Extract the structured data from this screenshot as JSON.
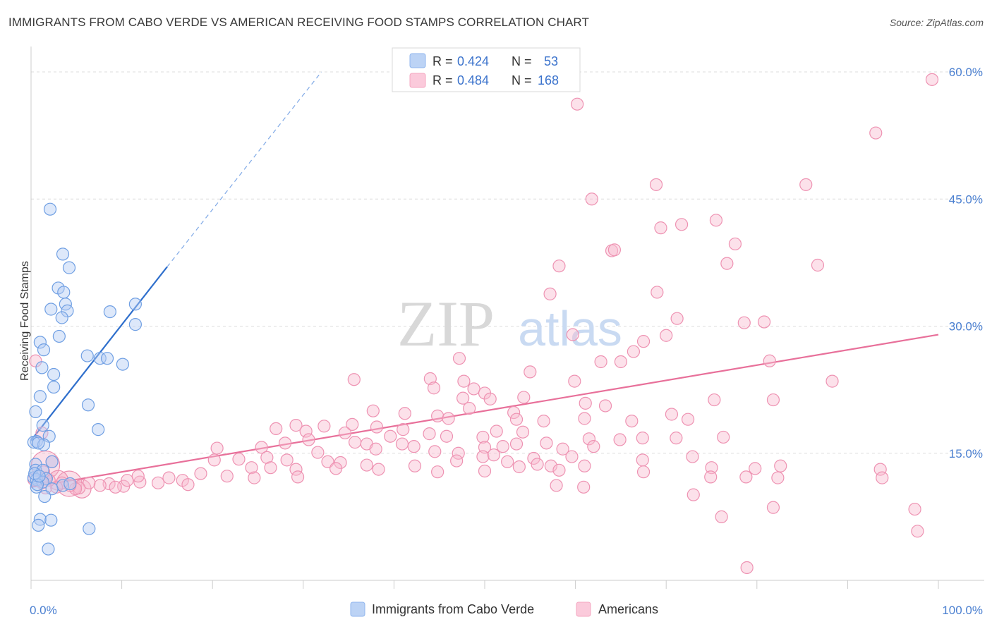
{
  "title": "IMMIGRANTS FROM CABO VERDE VS AMERICAN RECEIVING FOOD STAMPS CORRELATION CHART",
  "source": "Source: ZipAtlas.com",
  "watermark": {
    "zip": "ZIP",
    "atlas": "atlas"
  },
  "colors": {
    "blue": "#8fb6ee",
    "blue_line": "#2f6fcc",
    "pink": "#f4a7c0",
    "pink_line": "#e8709a",
    "axis_text": "#4a7fd0"
  },
  "stats": [
    {
      "r_label": "R =",
      "r": "0.424",
      "n_label": "N =",
      "n": "53"
    },
    {
      "r_label": "R =",
      "r": "0.484",
      "n_label": "N =",
      "n": "168"
    }
  ],
  "chart_data": {
    "type": "scatter",
    "ylabel": "Receiving Food Stamps",
    "xlim": [
      0,
      100
    ],
    "ylim": [
      0,
      62
    ],
    "x_ticks": [
      "0.0%",
      "100.0%"
    ],
    "y_ticks": [
      {
        "value": 15,
        "label": "15.0%"
      },
      {
        "value": 30,
        "label": "30.0%"
      },
      {
        "value": 45,
        "label": "45.0%"
      },
      {
        "value": 60,
        "label": "60.0%"
      }
    ],
    "grid": true,
    "legend": "bottom",
    "series": [
      {
        "name": "Immigrants from Cabo Verde",
        "color": "#8fb6ee",
        "trend": {
          "x0": 0,
          "y0": 16.5,
          "x1": 15,
          "y1": 37,
          "dash_to_x": 32,
          "dash_to_y": 60
        },
        "points": [
          [
            2.1,
            43.8
          ],
          [
            3.5,
            38.5
          ],
          [
            4.2,
            36.9
          ],
          [
            3.0,
            34.5
          ],
          [
            3.6,
            34.0
          ],
          [
            3.8,
            32.6
          ],
          [
            2.2,
            32.0
          ],
          [
            4.0,
            31.8
          ],
          [
            3.4,
            31.0
          ],
          [
            8.7,
            31.7
          ],
          [
            11.5,
            32.6
          ],
          [
            11.5,
            30.2
          ],
          [
            3.1,
            28.8
          ],
          [
            1.0,
            28.1
          ],
          [
            1.4,
            27.2
          ],
          [
            6.2,
            26.5
          ],
          [
            7.6,
            26.2
          ],
          [
            8.4,
            26.2
          ],
          [
            10.1,
            25.5
          ],
          [
            1.2,
            25.1
          ],
          [
            2.5,
            24.3
          ],
          [
            2.5,
            22.8
          ],
          [
            1.0,
            21.7
          ],
          [
            0.5,
            19.9
          ],
          [
            6.3,
            20.7
          ],
          [
            1.3,
            18.3
          ],
          [
            7.4,
            17.8
          ],
          [
            2.0,
            17.0
          ],
          [
            0.6,
            16.4
          ],
          [
            0.3,
            16.3
          ],
          [
            1.4,
            16.0
          ],
          [
            0.8,
            16.2
          ],
          [
            0.5,
            13.7
          ],
          [
            0.5,
            13.0
          ],
          [
            1.3,
            13.0
          ],
          [
            2.3,
            14.0
          ],
          [
            0.3,
            12.1
          ],
          [
            1.7,
            12.0
          ],
          [
            0.6,
            11.9
          ],
          [
            1.3,
            11.6
          ],
          [
            3.5,
            11.2
          ],
          [
            4.3,
            11.4
          ],
          [
            0.6,
            11.0
          ],
          [
            0.7,
            11.3
          ],
          [
            2.3,
            10.8
          ],
          [
            1.5,
            9.9
          ],
          [
            1.0,
            7.2
          ],
          [
            2.2,
            7.1
          ],
          [
            0.8,
            6.5
          ],
          [
            6.4,
            6.1
          ],
          [
            1.9,
            3.7
          ],
          [
            0.4,
            12.6
          ],
          [
            0.9,
            12.3
          ]
        ]
      },
      {
        "name": "Americans",
        "color": "#f4a7c0",
        "trend": {
          "x0": 0,
          "y0": 11.0,
          "x1": 100,
          "y1": 29.0
        },
        "points": [
          [
            99.3,
            59.1
          ],
          [
            60.2,
            56.2
          ],
          [
            93.1,
            52.8
          ],
          [
            68.9,
            46.7
          ],
          [
            85.4,
            46.7
          ],
          [
            61.8,
            45.0
          ],
          [
            75.5,
            42.5
          ],
          [
            71.7,
            42.0
          ],
          [
            69.4,
            41.6
          ],
          [
            77.6,
            39.7
          ],
          [
            64.0,
            38.9
          ],
          [
            64.3,
            39.0
          ],
          [
            58.2,
            37.1
          ],
          [
            76.7,
            37.4
          ],
          [
            86.7,
            37.2
          ],
          [
            57.2,
            33.8
          ],
          [
            69.0,
            34.0
          ],
          [
            71.2,
            30.9
          ],
          [
            78.6,
            30.4
          ],
          [
            80.8,
            30.5
          ],
          [
            59.7,
            29.0
          ],
          [
            70.0,
            28.9
          ],
          [
            67.5,
            28.2
          ],
          [
            66.4,
            27.0
          ],
          [
            62.8,
            25.8
          ],
          [
            81.4,
            25.9
          ],
          [
            65.0,
            25.8
          ],
          [
            47.2,
            26.2
          ],
          [
            55.0,
            24.6
          ],
          [
            35.6,
            23.7
          ],
          [
            44.0,
            23.8
          ],
          [
            47.7,
            23.5
          ],
          [
            44.4,
            22.7
          ],
          [
            48.8,
            22.6
          ],
          [
            50.0,
            22.1
          ],
          [
            59.9,
            23.5
          ],
          [
            88.3,
            23.5
          ],
          [
            50.6,
            21.4
          ],
          [
            54.3,
            21.6
          ],
          [
            47.6,
            21.5
          ],
          [
            75.3,
            21.3
          ],
          [
            81.8,
            21.3
          ],
          [
            61.1,
            20.9
          ],
          [
            63.3,
            20.6
          ],
          [
            48.3,
            20.3
          ],
          [
            37.7,
            20.0
          ],
          [
            53.2,
            19.8
          ],
          [
            41.2,
            19.7
          ],
          [
            61.0,
            19.1
          ],
          [
            70.6,
            19.6
          ],
          [
            44.8,
            19.4
          ],
          [
            46.0,
            19.1
          ],
          [
            53.5,
            19.0
          ],
          [
            56.5,
            18.8
          ],
          [
            66.2,
            18.8
          ],
          [
            72.4,
            19.0
          ],
          [
            29.2,
            18.3
          ],
          [
            32.3,
            18.2
          ],
          [
            35.4,
            18.4
          ],
          [
            38.1,
            18.1
          ],
          [
            27.0,
            17.9
          ],
          [
            30.3,
            17.6
          ],
          [
            34.6,
            17.4
          ],
          [
            41.0,
            17.8
          ],
          [
            43.9,
            17.3
          ],
          [
            51.3,
            17.6
          ],
          [
            54.2,
            17.5
          ],
          [
            39.6,
            17.0
          ],
          [
            45.8,
            17.0
          ],
          [
            49.8,
            16.9
          ],
          [
            61.5,
            16.7
          ],
          [
            64.9,
            16.6
          ],
          [
            67.4,
            16.8
          ],
          [
            71.1,
            16.8
          ],
          [
            76.3,
            16.9
          ],
          [
            28.0,
            16.2
          ],
          [
            30.6,
            16.6
          ],
          [
            35.7,
            16.3
          ],
          [
            37.0,
            16.1
          ],
          [
            40.9,
            16.1
          ],
          [
            42.2,
            15.8
          ],
          [
            50.0,
            15.7
          ],
          [
            52.0,
            15.8
          ],
          [
            53.5,
            16.1
          ],
          [
            56.8,
            16.2
          ],
          [
            58.6,
            15.5
          ],
          [
            20.5,
            15.6
          ],
          [
            25.4,
            15.7
          ],
          [
            31.6,
            15.1
          ],
          [
            38.0,
            15.5
          ],
          [
            44.5,
            15.2
          ],
          [
            47.1,
            15.0
          ],
          [
            49.8,
            14.6
          ],
          [
            51.0,
            14.8
          ],
          [
            55.4,
            14.4
          ],
          [
            59.6,
            14.6
          ],
          [
            62.0,
            15.8
          ],
          [
            72.9,
            14.6
          ],
          [
            20.2,
            14.2
          ],
          [
            22.9,
            14.3
          ],
          [
            26.0,
            14.5
          ],
          [
            28.2,
            14.2
          ],
          [
            32.7,
            14.0
          ],
          [
            34.1,
            13.9
          ],
          [
            37.0,
            13.6
          ],
          [
            42.3,
            13.5
          ],
          [
            46.9,
            14.1
          ],
          [
            52.5,
            14.0
          ],
          [
            55.8,
            13.7
          ],
          [
            57.3,
            13.5
          ],
          [
            61.0,
            13.5
          ],
          [
            67.4,
            14.2
          ],
          [
            75.0,
            13.3
          ],
          [
            79.8,
            13.2
          ],
          [
            82.6,
            13.5
          ],
          [
            93.6,
            13.1
          ],
          [
            24.3,
            13.3
          ],
          [
            26.4,
            13.3
          ],
          [
            29.2,
            13.1
          ],
          [
            33.6,
            13.2
          ],
          [
            38.3,
            13.1
          ],
          [
            44.8,
            12.8
          ],
          [
            50.0,
            12.9
          ],
          [
            53.8,
            13.4
          ],
          [
            58.2,
            13.0
          ],
          [
            67.5,
            12.8
          ],
          [
            74.9,
            12.2
          ],
          [
            78.8,
            12.2
          ],
          [
            82.3,
            12.1
          ],
          [
            93.8,
            12.1
          ],
          [
            18.7,
            12.6
          ],
          [
            21.6,
            12.3
          ],
          [
            24.6,
            12.1
          ],
          [
            29.4,
            12.2
          ],
          [
            12.0,
            11.6
          ],
          [
            14.0,
            11.5
          ],
          [
            15.2,
            12.1
          ],
          [
            16.7,
            11.8
          ],
          [
            17.3,
            11.3
          ],
          [
            10.2,
            11.1
          ],
          [
            10.6,
            11.8
          ],
          [
            11.8,
            12.3
          ],
          [
            8.6,
            11.4
          ],
          [
            9.3,
            11.0
          ],
          [
            7.6,
            11.2
          ],
          [
            6.4,
            11.5
          ],
          [
            5.3,
            10.9
          ],
          [
            4.9,
            10.8
          ],
          [
            4.3,
            11.2
          ],
          [
            3.4,
            11.5
          ],
          [
            2.8,
            11.0
          ],
          [
            2.0,
            11.8
          ],
          [
            1.6,
            12.1
          ],
          [
            1.2,
            11.5
          ],
          [
            1.6,
            10.9
          ],
          [
            2.3,
            14.0
          ],
          [
            1.2,
            17.4
          ],
          [
            0.5,
            25.9
          ],
          [
            1.4,
            12.8
          ],
          [
            0.3,
            11.9
          ],
          [
            57.9,
            11.2
          ],
          [
            60.9,
            11.0
          ],
          [
            73.0,
            10.1
          ],
          [
            76.1,
            7.5
          ],
          [
            81.8,
            8.6
          ],
          [
            97.4,
            8.4
          ],
          [
            97.7,
            5.8
          ],
          [
            78.9,
            1.5
          ]
        ]
      }
    ]
  }
}
